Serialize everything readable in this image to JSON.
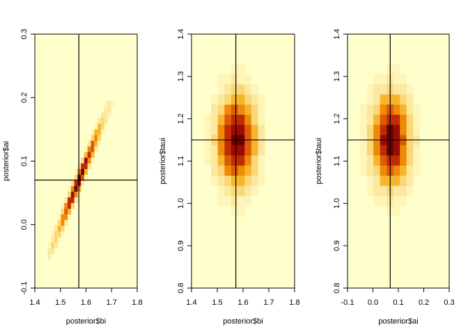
{
  "colors": {
    "background": "#ffffcc",
    "ramp": [
      "#fff5b8",
      "#fde8a0",
      "#fbd777",
      "#f7b52c",
      "#ee8a08",
      "#dc5c05",
      "#bf2c03",
      "#9a0b04",
      "#6b0000"
    ],
    "crosshair": "#000000"
  },
  "chart_data": [
    {
      "type": "heatmap",
      "xlabel": "posterior$bi",
      "ylabel": "posterior$ai",
      "xlim": [
        1.4,
        1.8
      ],
      "ylim": [
        -0.1,
        0.3
      ],
      "xticks": [
        "1.4",
        "1.5",
        "1.6",
        "1.7",
        "1.8"
      ],
      "yticks": [
        "-0.1",
        "0.0",
        "0.1",
        "0.2",
        "0.3"
      ],
      "density": {
        "shape": "correlated",
        "cx": 1.572,
        "cy": 0.07,
        "sx": 0.055,
        "sy": 0.055,
        "rho": 0.985,
        "xrange": [
          1.45,
          1.71
        ],
        "yrange": [
          -0.055,
          0.195
        ],
        "nx": 20,
        "ny": 28
      },
      "vline": 1.572,
      "hline": 0.07
    },
    {
      "type": "heatmap",
      "xlabel": "posterior$bi",
      "ylabel": "posterior$taui",
      "xlim": [
        1.4,
        1.8
      ],
      "ylim": [
        0.8,
        1.4
      ],
      "xticks": [
        "1.4",
        "1.5",
        "1.6",
        "1.7",
        "1.8"
      ],
      "yticks": [
        "0.8",
        "0.9",
        "1.0",
        "1.1",
        "1.2",
        "1.3",
        "1.4"
      ],
      "density": {
        "shape": "independent",
        "cx": 1.575,
        "cy": 1.15,
        "sx": 0.045,
        "sy": 0.065,
        "xrange": [
          1.45,
          1.71
        ],
        "yrange": [
          0.97,
          1.33
        ],
        "nx": 10,
        "ny": 15
      },
      "vline": 1.572,
      "hline": 1.15
    },
    {
      "type": "heatmap",
      "xlabel": "posterior$ai",
      "ylabel": "posterior$taui",
      "xlim": [
        -0.1,
        0.3
      ],
      "ylim": [
        0.8,
        1.4
      ],
      "xticks": [
        "-0.1",
        "0.0",
        "0.1",
        "0.2",
        "0.3"
      ],
      "yticks": [
        "0.8",
        "0.9",
        "1.0",
        "1.1",
        "1.2",
        "1.3",
        "1.4"
      ],
      "density": {
        "shape": "independent",
        "cx": 0.07,
        "cy": 1.15,
        "sx": 0.045,
        "sy": 0.065,
        "xrange": [
          -0.05,
          0.21
        ],
        "yrange": [
          0.97,
          1.33
        ],
        "nx": 10,
        "ny": 15
      },
      "vline": 0.068,
      "hline": 1.15
    }
  ]
}
